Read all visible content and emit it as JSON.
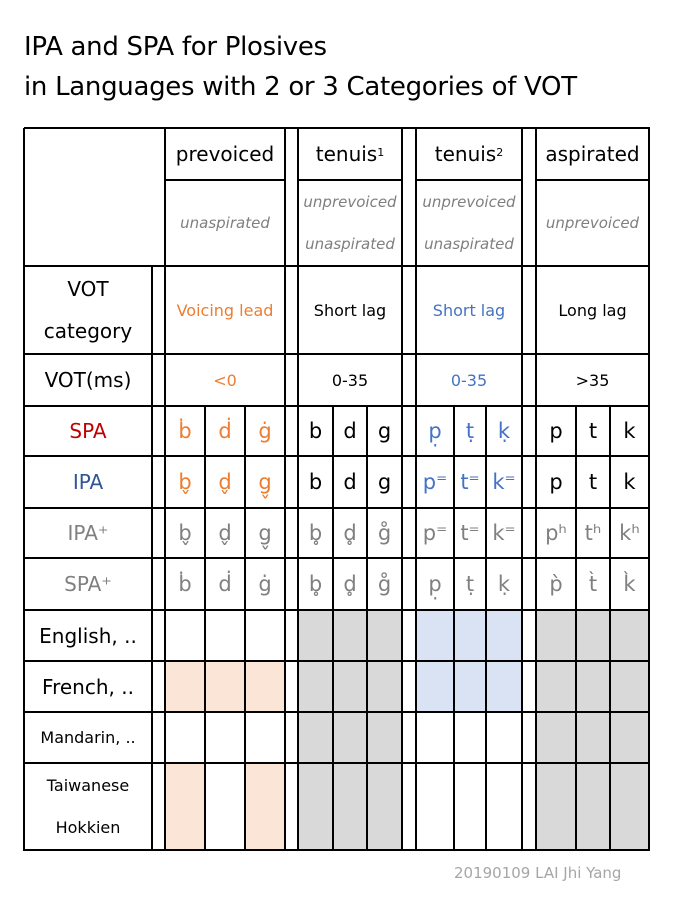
{
  "title": {
    "line1": "IPA and SPA for Plosives",
    "line2": "in Languages with 2 or 3 Categories of VOT"
  },
  "colors": {
    "prevoiced_accent": "#ed7d31",
    "tenuis2_accent": "#4472c4",
    "spa_label": "#c00000",
    "ipa_label": "#2f5597",
    "secondary_gray": "#808080",
    "fill_gray": "#d9d9d9",
    "fill_peach": "#fbe5d6",
    "fill_blue": "#dae3f3"
  },
  "columns": [
    {
      "id": "prevoiced",
      "header": "prevoiced",
      "header_sup": "",
      "sub_lines": [
        "unaspirated"
      ],
      "vot_category": "Voicing lead",
      "vot_ms": "<0",
      "spa": [
        "ḃ",
        "ḋ",
        "ġ"
      ],
      "ipa": [
        "b̬",
        "d̬",
        "g̬"
      ],
      "ipa_plus": [
        "b̬",
        "d̬",
        "g̬"
      ],
      "spa_plus": [
        "ḃ",
        "ḋ",
        "ġ"
      ]
    },
    {
      "id": "tenuis1",
      "header": "tenuis",
      "header_sup": "1",
      "sub_lines": [
        "unprevoiced",
        "unaspirated"
      ],
      "vot_category": "Short lag",
      "vot_ms": "0-35",
      "spa": [
        "b",
        "d",
        "g"
      ],
      "ipa": [
        "b",
        "d",
        "g"
      ],
      "ipa_plus": [
        "b̥",
        "d̥",
        "g̊"
      ],
      "spa_plus": [
        "b̥",
        "d̥",
        "g̊"
      ]
    },
    {
      "id": "tenuis2",
      "header": "tenuis",
      "header_sup": "2",
      "sub_lines": [
        "unprevoiced",
        "unaspirated"
      ],
      "vot_category": "Short lag",
      "vot_ms": "0-35",
      "spa": [
        "p̣",
        "ṭ",
        "ḳ"
      ],
      "ipa": [
        "p⁼",
        "t⁼",
        "k⁼"
      ],
      "ipa_plus": [
        "p⁼",
        "t⁼",
        "k⁼"
      ],
      "spa_plus": [
        "p̣",
        "ṭ",
        "ḳ"
      ]
    },
    {
      "id": "aspirated",
      "header": "aspirated",
      "header_sup": "",
      "sub_lines": [
        "unprevoiced"
      ],
      "vot_category": "Long lag",
      "vot_ms": ">35",
      "spa": [
        "p",
        "t",
        "k"
      ],
      "ipa": [
        "p",
        "t",
        "k"
      ],
      "ipa_plus": [
        "pʰ",
        "tʰ",
        "kʰ"
      ],
      "spa_plus": [
        "p̀",
        "t̀",
        "k̀"
      ]
    }
  ],
  "row_labels": {
    "vot_category": [
      "VOT",
      "category"
    ],
    "vot_ms": "VOT(ms)",
    "spa": "SPA",
    "ipa": "IPA",
    "ipa_plus": "IPA⁺",
    "spa_plus": "SPA⁺"
  },
  "languages": [
    {
      "name_lines": [
        "English, .."
      ],
      "fills": [
        "none",
        "none",
        "none",
        "gray",
        "gray",
        "gray",
        "blue",
        "blue",
        "blue",
        "gray",
        "gray",
        "gray"
      ]
    },
    {
      "name_lines": [
        "French, .."
      ],
      "fills": [
        "peach",
        "peach",
        "peach",
        "gray",
        "gray",
        "gray",
        "blue",
        "blue",
        "blue",
        "gray",
        "gray",
        "gray"
      ]
    },
    {
      "name_lines": [
        "Mandarin, .."
      ],
      "fills": [
        "none",
        "none",
        "none",
        "gray",
        "gray",
        "gray",
        "none",
        "none",
        "none",
        "gray",
        "gray",
        "gray"
      ]
    },
    {
      "name_lines": [
        "Taiwanese",
        "Hokkien"
      ],
      "fills": [
        "peach",
        "none",
        "peach",
        "gray",
        "gray",
        "gray",
        "none",
        "none",
        "none",
        "gray",
        "gray",
        "gray"
      ]
    }
  ],
  "credit": "20190109 LAI Jhi Yang"
}
